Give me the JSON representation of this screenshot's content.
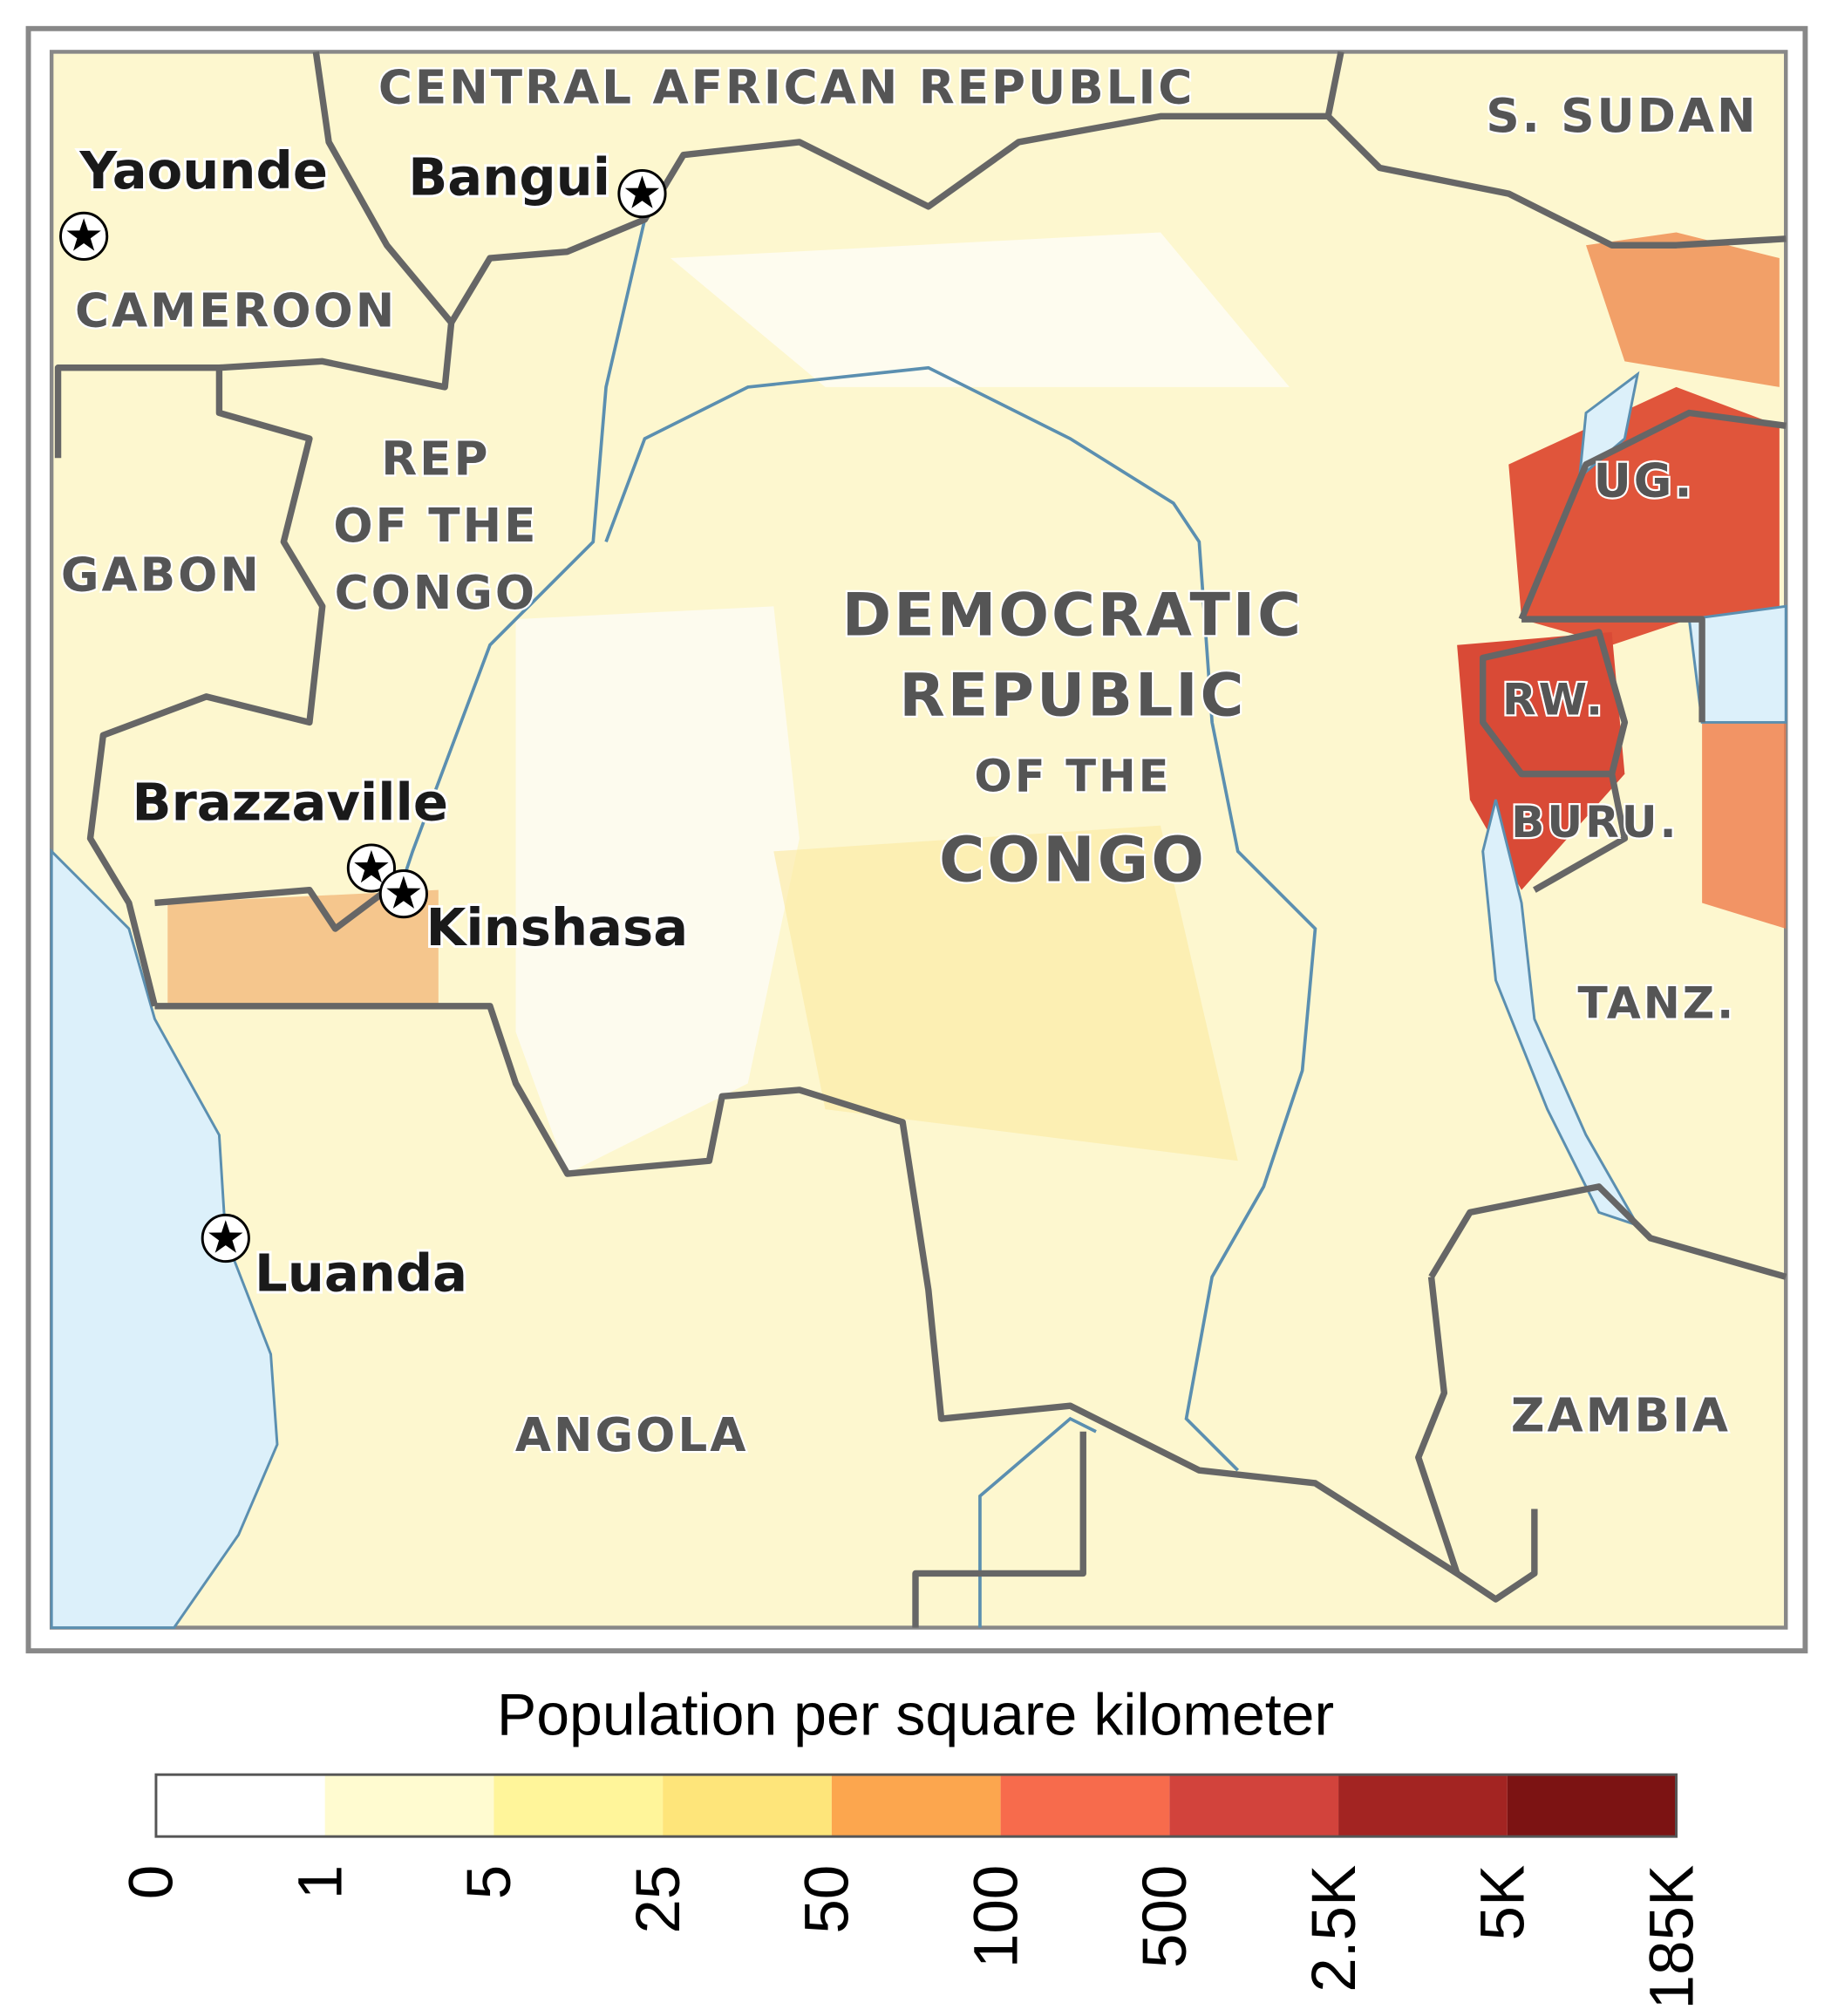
{
  "countries": [
    {
      "lines": [
        "CENTRAL AFRICAN REPUBLIC"
      ]
    },
    {
      "lines": [
        "S. SUDAN"
      ]
    },
    {
      "lines": [
        "CAMEROON"
      ]
    },
    {
      "lines": [
        "REP",
        "OF THE",
        "CONGO"
      ]
    },
    {
      "lines": [
        "GABON"
      ]
    },
    {
      "lines": [
        "DEMOCRATIC",
        "REPUBLIC",
        "OF THE",
        "CONGO"
      ]
    },
    {
      "lines": [
        "UG."
      ]
    },
    {
      "lines": [
        "RW."
      ]
    },
    {
      "lines": [
        "BURU."
      ]
    },
    {
      "lines": [
        "TANZ."
      ]
    },
    {
      "lines": [
        "ANGOLA"
      ]
    },
    {
      "lines": [
        "ZAMBIA"
      ]
    }
  ],
  "cities": [
    "Yaounde",
    "Bangui",
    "Brazzaville",
    "Kinshasa",
    "Luanda"
  ],
  "legend": {
    "title": "Population per square kilometer",
    "colors": [
      "#ffffff",
      "#fffbd0",
      "#fff59a",
      "#fee57a",
      "#fca64e",
      "#f76b4c",
      "#d2433c",
      "#a32422",
      "#7c1313"
    ],
    "ticks": [
      0,
      1,
      5,
      25,
      50,
      100,
      500,
      {
        "value": 2500,
        "label": "2.5K"
      },
      {
        "value": 5000,
        "label": "5K"
      },
      {
        "value": 185000,
        "label": "185K"
      }
    ]
  }
}
